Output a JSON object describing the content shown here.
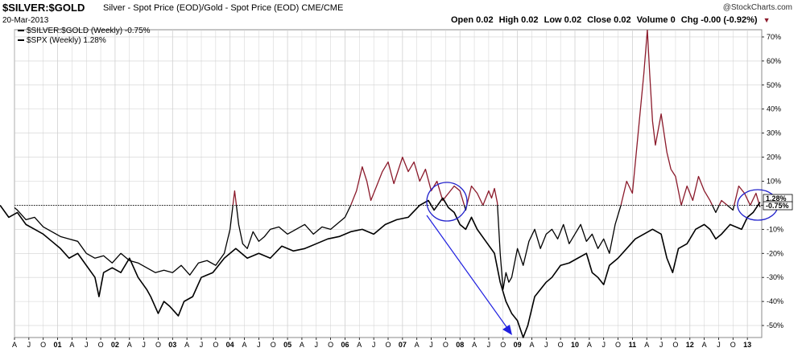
{
  "header": {
    "symbol": "$SILVER:$GOLD",
    "description": "Silver - Spot Price (EOD)/Gold - Spot Price (EOD) CME/CME",
    "date": "20-Mar-2013",
    "brand": "@StockCharts.com",
    "ohlc": {
      "open": "Open 0.02",
      "high": "High 0.02",
      "low": "Low 0.02",
      "close": "Close 0.02",
      "volume": "Volume 0",
      "chg": "Chg -0.00 (-0.92%)"
    }
  },
  "legend": {
    "items": [
      {
        "label": "$SILVER:$GOLD (Weekly) -0.75%"
      },
      {
        "label": "$SPX (Weekly) 1.28%"
      }
    ]
  },
  "end_labels": {
    "spx": "1.28%",
    "silver_gold": "-0.75%"
  },
  "colors": {
    "silver_gold_above": "#8b1a2b",
    "silver_gold_below": "#000000",
    "spx": "#000000",
    "arrow": "#1f1fe0",
    "circle": "#2222cc",
    "grid": "#d0d0d0"
  },
  "chart_data": {
    "type": "line",
    "y_unit": "% change",
    "ylim": [
      -55,
      73
    ],
    "y_ticks": [
      70,
      60,
      50,
      40,
      30,
      20,
      10,
      0,
      -10,
      -20,
      -30,
      -40,
      -50
    ],
    "y_tick_labels": [
      "70%",
      "60%",
      "50%",
      "40%",
      "30%",
      "20%",
      "10%",
      "0%",
      "-10%",
      "-20%",
      "-30%",
      "-40%",
      "-50%"
    ],
    "x_range": [
      2000.25,
      2013.25
    ],
    "x_ticks": [
      {
        "t": 2000.25,
        "label": "A"
      },
      {
        "t": 2000.5,
        "label": "J"
      },
      {
        "t": 2000.75,
        "label": "O"
      },
      {
        "t": 2001.0,
        "label": "01",
        "year": true
      },
      {
        "t": 2001.25,
        "label": "A"
      },
      {
        "t": 2001.5,
        "label": "J"
      },
      {
        "t": 2001.75,
        "label": "O"
      },
      {
        "t": 2002.0,
        "label": "02",
        "year": true
      },
      {
        "t": 2002.25,
        "label": "A"
      },
      {
        "t": 2002.5,
        "label": "J"
      },
      {
        "t": 2002.75,
        "label": "O"
      },
      {
        "t": 2003.0,
        "label": "03",
        "year": true
      },
      {
        "t": 2003.25,
        "label": "A"
      },
      {
        "t": 2003.5,
        "label": "J"
      },
      {
        "t": 2003.75,
        "label": "O"
      },
      {
        "t": 2004.0,
        "label": "04",
        "year": true
      },
      {
        "t": 2004.25,
        "label": "A"
      },
      {
        "t": 2004.5,
        "label": "J"
      },
      {
        "t": 2004.75,
        "label": "O"
      },
      {
        "t": 2005.0,
        "label": "05",
        "year": true
      },
      {
        "t": 2005.25,
        "label": "A"
      },
      {
        "t": 2005.5,
        "label": "J"
      },
      {
        "t": 2005.75,
        "label": "O"
      },
      {
        "t": 2006.0,
        "label": "06",
        "year": true
      },
      {
        "t": 2006.25,
        "label": "A"
      },
      {
        "t": 2006.5,
        "label": "J"
      },
      {
        "t": 2006.75,
        "label": "O"
      },
      {
        "t": 2007.0,
        "label": "07",
        "year": true
      },
      {
        "t": 2007.25,
        "label": "A"
      },
      {
        "t": 2007.5,
        "label": "J"
      },
      {
        "t": 2007.75,
        "label": "O"
      },
      {
        "t": 2008.0,
        "label": "08",
        "year": true
      },
      {
        "t": 2008.25,
        "label": "A"
      },
      {
        "t": 2008.5,
        "label": "J"
      },
      {
        "t": 2008.75,
        "label": "O"
      },
      {
        "t": 2009.0,
        "label": "09",
        "year": true
      },
      {
        "t": 2009.25,
        "label": "A"
      },
      {
        "t": 2009.5,
        "label": "J"
      },
      {
        "t": 2009.75,
        "label": "O"
      },
      {
        "t": 2010.0,
        "label": "10",
        "year": true
      },
      {
        "t": 2010.25,
        "label": "A"
      },
      {
        "t": 2010.5,
        "label": "J"
      },
      {
        "t": 2010.75,
        "label": "O"
      },
      {
        "t": 2011.0,
        "label": "11",
        "year": true
      },
      {
        "t": 2011.25,
        "label": "A"
      },
      {
        "t": 2011.5,
        "label": "J"
      },
      {
        "t": 2011.75,
        "label": "O"
      },
      {
        "t": 2012.0,
        "label": "12",
        "year": true
      },
      {
        "t": 2012.25,
        "label": "A"
      },
      {
        "t": 2012.5,
        "label": "J"
      },
      {
        "t": 2012.75,
        "label": "O"
      },
      {
        "t": 2013.0,
        "label": "13",
        "year": true
      }
    ],
    "zero_line": true,
    "series": [
      {
        "name": "$SILVER:$GOLD (Weekly) -0.75%",
        "t": [
          2000.0,
          2000.15,
          2000.3,
          2000.45,
          2000.6,
          2000.75,
          2000.9,
          2001.05,
          2001.2,
          2001.35,
          2001.5,
          2001.65,
          2001.8,
          2001.95,
          2002.1,
          2002.25,
          2002.4,
          2002.55,
          2002.7,
          2002.85,
          2003.0,
          2003.15,
          2003.3,
          2003.45,
          2003.6,
          2003.75,
          2003.9,
          2004.0,
          2004.08,
          2004.15,
          2004.22,
          2004.3,
          2004.4,
          2004.5,
          2004.6,
          2004.7,
          2004.85,
          2005.0,
          2005.15,
          2005.3,
          2005.45,
          2005.6,
          2005.75,
          2005.9,
          2006.0,
          2006.1,
          2006.2,
          2006.3,
          2006.38,
          2006.45,
          2006.55,
          2006.65,
          2006.75,
          2006.85,
          2007.0,
          2007.1,
          2007.2,
          2007.3,
          2007.4,
          2007.5,
          2007.6,
          2007.7,
          2007.8,
          2007.9,
          2008.0,
          2008.1,
          2008.2,
          2008.3,
          2008.4,
          2008.5,
          2008.55,
          2008.6,
          2008.65,
          2008.7,
          2008.75,
          2008.8,
          2008.85,
          2008.9,
          2009.0,
          2009.1,
          2009.2,
          2009.3,
          2009.4,
          2009.5,
          2009.6,
          2009.7,
          2009.8,
          2009.9,
          2010.0,
          2010.1,
          2010.2,
          2010.3,
          2010.4,
          2010.5,
          2010.6,
          2010.7,
          2010.8,
          2010.9,
          2011.0,
          2011.1,
          2011.2,
          2011.26,
          2011.3,
          2011.35,
          2011.4,
          2011.5,
          2011.6,
          2011.67,
          2011.75,
          2011.85,
          2011.95,
          2012.05,
          2012.15,
          2012.25,
          2012.35,
          2012.45,
          2012.55,
          2012.65,
          2012.75,
          2012.85,
          2012.95,
          2013.05,
          2013.15,
          2013.22
        ],
        "values": [
          0,
          1,
          -2,
          -6,
          -5,
          -9,
          -11,
          -13,
          -14,
          -15,
          -20,
          -22,
          -21,
          -24,
          -20,
          -23,
          -24,
          -26,
          -28,
          -27,
          -28,
          -25,
          -29,
          -24,
          -23,
          -25,
          -20,
          -10,
          6,
          -8,
          -16,
          -18,
          -11,
          -15,
          -13,
          -10,
          -9,
          -12,
          -10,
          -8,
          -12,
          -9,
          -10,
          -7,
          -5,
          0,
          6,
          16,
          10,
          2,
          8,
          14,
          18,
          9,
          20,
          14,
          18,
          10,
          15,
          6,
          10,
          2,
          5,
          8,
          6,
          -2,
          8,
          5,
          0,
          6,
          3,
          7,
          1,
          -20,
          -35,
          -28,
          -32,
          -30,
          -18,
          -25,
          -15,
          -10,
          -18,
          -12,
          -10,
          -14,
          -8,
          -16,
          -12,
          -8,
          -15,
          -12,
          -18,
          -14,
          -20,
          -8,
          0,
          10,
          5,
          30,
          55,
          73,
          55,
          35,
          25,
          38,
          22,
          15,
          12,
          0,
          8,
          2,
          12,
          6,
          2,
          -3,
          2,
          0,
          -2,
          8,
          5,
          0,
          5,
          -0.75
        ]
      },
      {
        "name": "$SPX (Weekly) 1.28%",
        "t": [
          2000.0,
          2000.15,
          2000.3,
          2000.45,
          2000.6,
          2000.75,
          2000.9,
          2001.05,
          2001.2,
          2001.35,
          2001.5,
          2001.65,
          2001.72,
          2001.8,
          2001.95,
          2002.1,
          2002.25,
          2002.4,
          2002.55,
          2002.62,
          2002.75,
          2002.85,
          2002.95,
          2003.1,
          2003.2,
          2003.35,
          2003.5,
          2003.7,
          2003.9,
          2004.1,
          2004.3,
          2004.5,
          2004.7,
          2004.9,
          2005.1,
          2005.3,
          2005.5,
          2005.7,
          2005.9,
          2006.1,
          2006.3,
          2006.5,
          2006.7,
          2006.9,
          2007.1,
          2007.3,
          2007.45,
          2007.55,
          2007.7,
          2007.8,
          2007.9,
          2008.0,
          2008.1,
          2008.2,
          2008.3,
          2008.45,
          2008.6,
          2008.7,
          2008.8,
          2008.9,
          2009.0,
          2009.1,
          2009.18,
          2009.3,
          2009.4,
          2009.5,
          2009.6,
          2009.75,
          2009.9,
          2010.05,
          2010.2,
          2010.3,
          2010.4,
          2010.5,
          2010.6,
          2010.75,
          2010.9,
          2011.05,
          2011.2,
          2011.35,
          2011.5,
          2011.6,
          2011.7,
          2011.8,
          2011.95,
          2012.1,
          2012.25,
          2012.35,
          2012.45,
          2012.55,
          2012.7,
          2012.8,
          2012.9,
          2013.0,
          2013.1,
          2013.22
        ],
        "values": [
          0,
          -5,
          -3,
          -8,
          -10,
          -12,
          -15,
          -18,
          -22,
          -20,
          -25,
          -30,
          -38,
          -28,
          -26,
          -28,
          -22,
          -30,
          -35,
          -38,
          -45,
          -40,
          -42,
          -46,
          -40,
          -38,
          -30,
          -28,
          -22,
          -18,
          -22,
          -20,
          -22,
          -17,
          -19,
          -18,
          -16,
          -14,
          -13,
          -11,
          -10,
          -12,
          -8,
          -6,
          -5,
          0,
          2,
          -2,
          3,
          -1,
          -3,
          -8,
          -10,
          -5,
          -10,
          -15,
          -20,
          -32,
          -40,
          -45,
          -48,
          -55,
          -50,
          -38,
          -35,
          -32,
          -30,
          -25,
          -24,
          -22,
          -20,
          -28,
          -30,
          -33,
          -25,
          -22,
          -18,
          -14,
          -12,
          -10,
          -12,
          -22,
          -28,
          -18,
          -16,
          -10,
          -8,
          -10,
          -14,
          -12,
          -8,
          -9,
          -10,
          -5,
          -3,
          1.28
        ]
      }
    ]
  }
}
